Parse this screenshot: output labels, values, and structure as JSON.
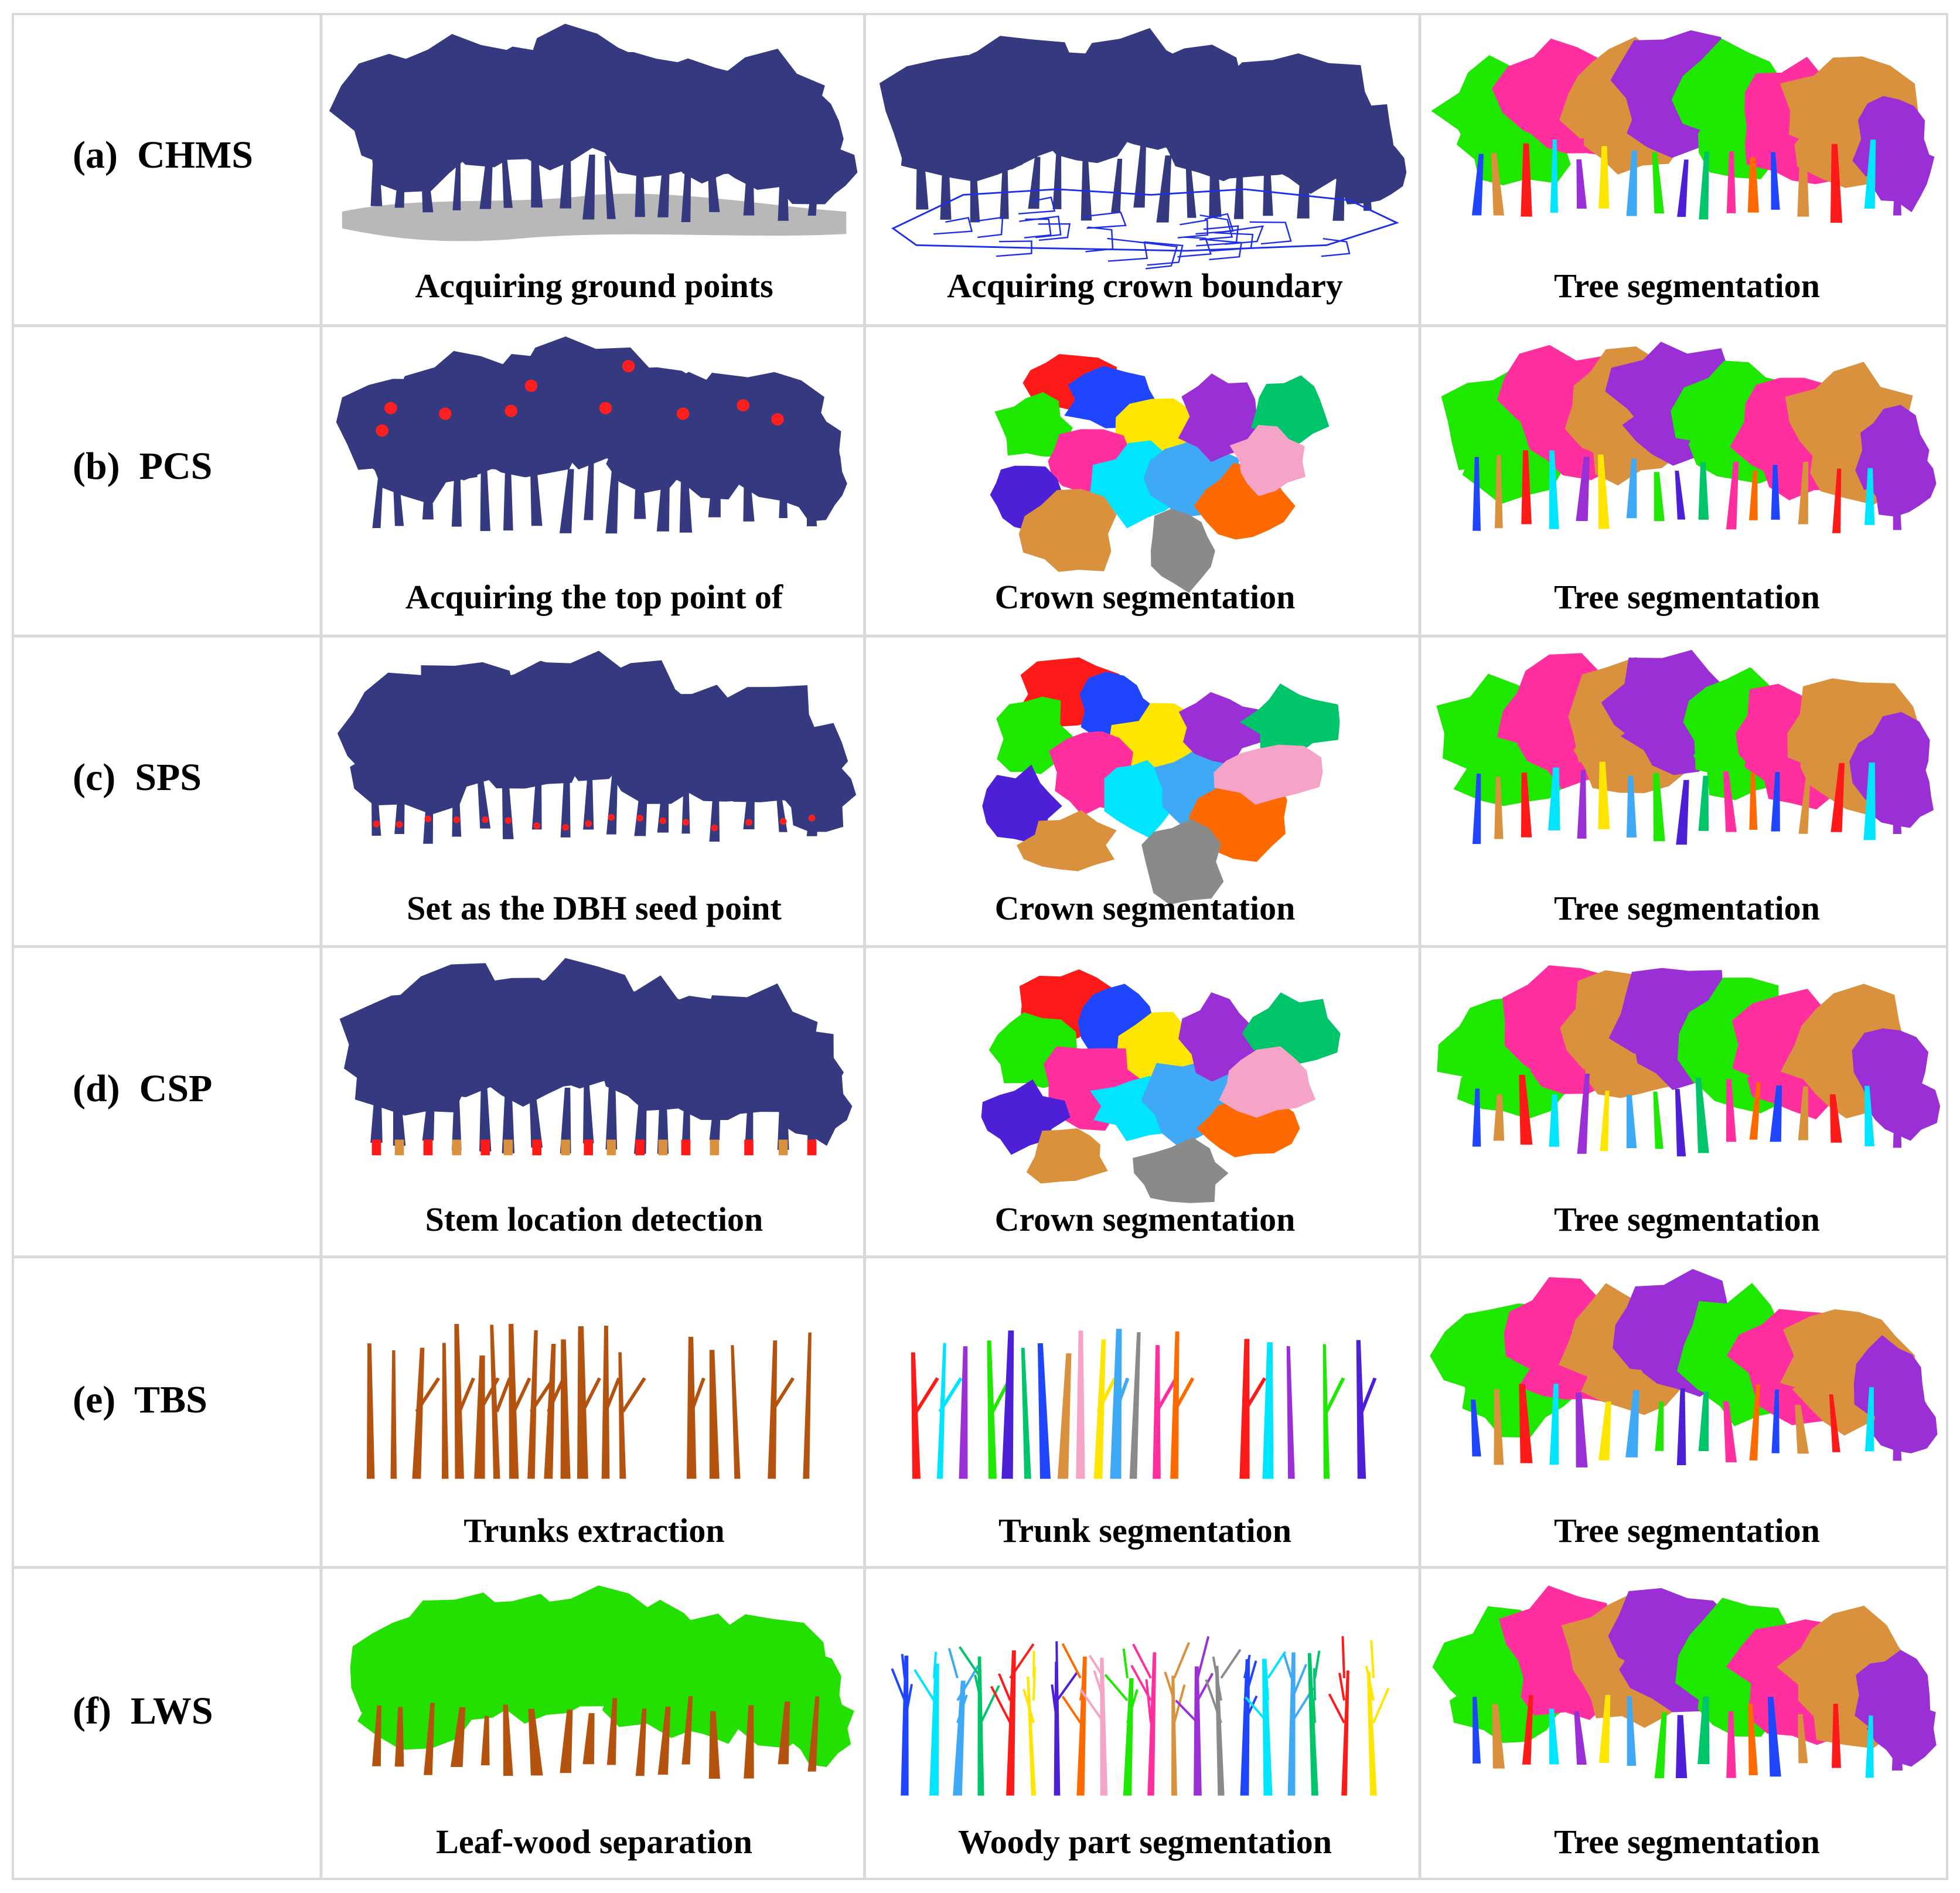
{
  "colors": {
    "tree_navy": "#343980",
    "ground_gray": "#b8b8b8",
    "crown_boundary_blue": "#1f2fe6",
    "seed_red": "#ff1f1f",
    "trunk_brown": "#b4530f",
    "leaf_green": "#24e000",
    "grid_line": "#d9d9d9",
    "segment_palette": [
      "#ff1a1a",
      "#1fe800",
      "#1f45ff",
      "#ffe600",
      "#ff2fa0",
      "#00e5ff",
      "#4d1fd6",
      "#d9913d",
      "#3fa9f5",
      "#ff6a00",
      "#9b2fd6",
      "#00c46a",
      "#f5a3c7",
      "#8a8a8a"
    ]
  },
  "rows": [
    {
      "id": "a",
      "label": "(a)  CHMS",
      "panels": [
        {
          "caption": "Acquiring ground points",
          "icon": "tree-point-cloud-with-ground-icon"
        },
        {
          "caption": "Acquiring crown boundary",
          "icon": "tree-point-cloud-with-crown-boundary-icon"
        },
        {
          "caption": "Tree segmentation",
          "icon": "segmented-trees-icon"
        }
      ]
    },
    {
      "id": "b",
      "label": "(b)  PCS",
      "panels": [
        {
          "caption": "Acquiring the top point of",
          "icon": "tree-point-cloud-with-top-points-icon"
        },
        {
          "caption": "Crown segmentation",
          "icon": "crown-segmentation-top-view-icon"
        },
        {
          "caption": "Tree segmentation",
          "icon": "segmented-trees-icon"
        }
      ]
    },
    {
      "id": "c",
      "label": "(c)  SPS",
      "panels": [
        {
          "caption": "Set as the DBH seed point",
          "icon": "tree-point-cloud-with-dbh-seeds-icon"
        },
        {
          "caption": "Crown segmentation",
          "icon": "crown-segmentation-top-view-icon"
        },
        {
          "caption": "Tree segmentation",
          "icon": "segmented-trees-icon"
        }
      ]
    },
    {
      "id": "d",
      "label": "(d)  CSP",
      "panels": [
        {
          "caption": "Stem location detection",
          "icon": "tree-point-cloud-with-stem-locations-icon"
        },
        {
          "caption": "Crown segmentation",
          "icon": "crown-segmentation-top-view-icon"
        },
        {
          "caption": "Tree segmentation",
          "icon": "segmented-trees-icon"
        }
      ]
    },
    {
      "id": "e",
      "label": "(e)  TBS",
      "panels": [
        {
          "caption": "Trunks extraction",
          "icon": "extracted-trunks-icon"
        },
        {
          "caption": "Trunk segmentation",
          "icon": "segmented-trunks-icon"
        },
        {
          "caption": "Tree segmentation",
          "icon": "segmented-trees-icon"
        }
      ]
    },
    {
      "id": "f",
      "label": "(f)  LWS",
      "panels": [
        {
          "caption": "Leaf-wood separation",
          "icon": "leaf-wood-separation-icon"
        },
        {
          "caption": "Woody part segmentation",
          "icon": "woody-part-segmentation-icon"
        },
        {
          "caption": "Tree segmentation",
          "icon": "segmented-trees-icon"
        }
      ]
    }
  ]
}
